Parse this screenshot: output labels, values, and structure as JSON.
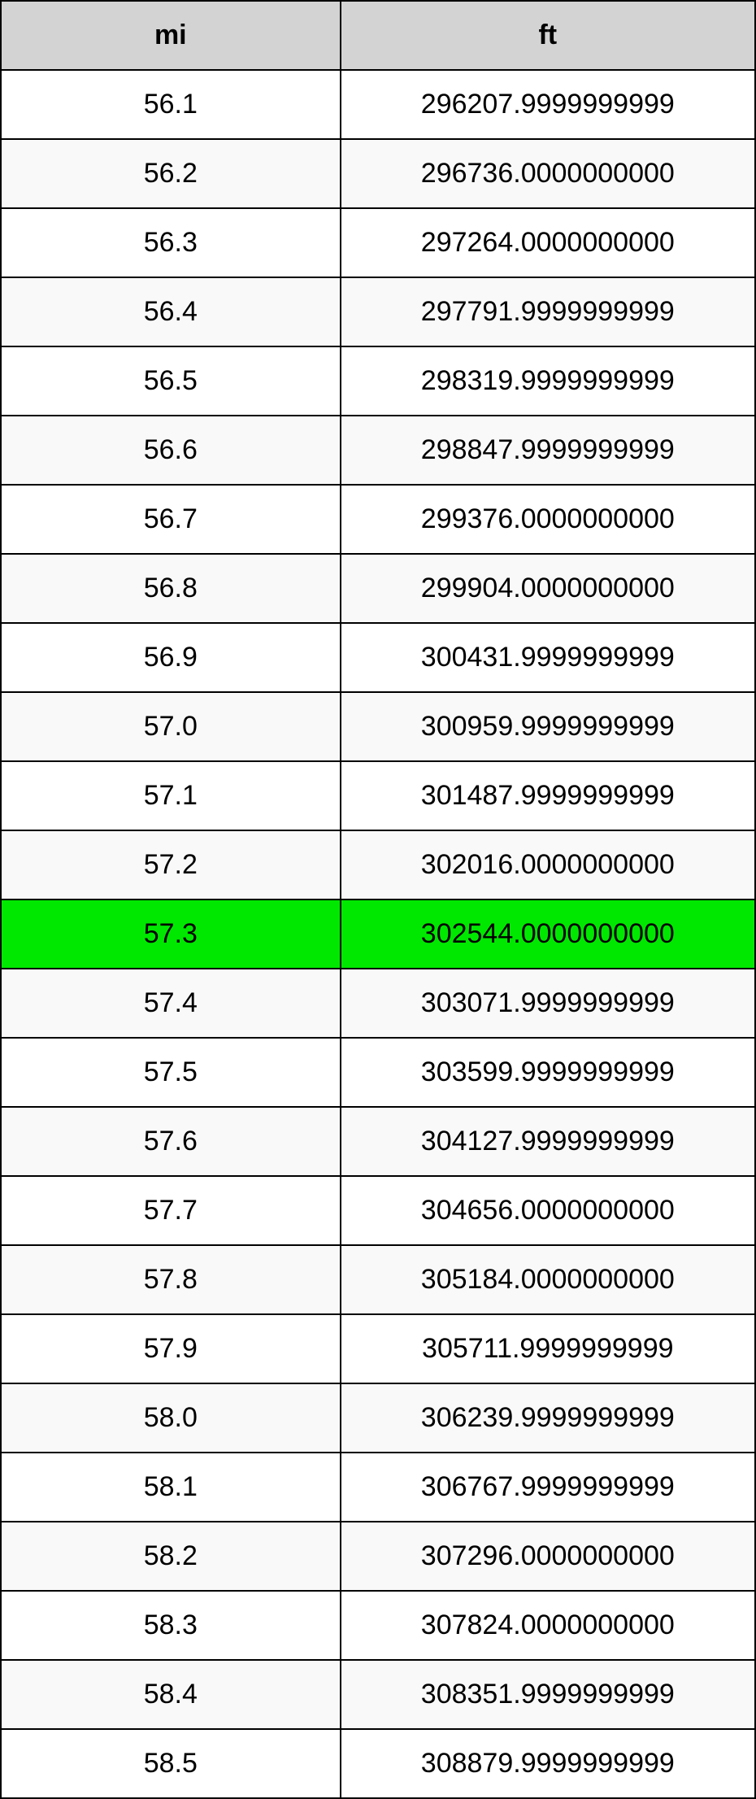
{
  "table": {
    "type": "table",
    "header_bg_color": "#d3d3d3",
    "border_color": "#000000",
    "highlight_color": "#00e800",
    "row_odd_bg": "#ffffff",
    "row_even_bg": "#f9f9f9",
    "font_size": 34,
    "header_font_weight": "bold",
    "text_color": "#000000",
    "columns": [
      {
        "label": "mi",
        "width_pct": 45,
        "align": "center"
      },
      {
        "label": "ft",
        "width_pct": 55,
        "align": "center"
      }
    ],
    "highlighted_row_index": 12,
    "rows": [
      {
        "mi": "56.1",
        "ft": "296207.9999999999"
      },
      {
        "mi": "56.2",
        "ft": "296736.0000000000"
      },
      {
        "mi": "56.3",
        "ft": "297264.0000000000"
      },
      {
        "mi": "56.4",
        "ft": "297791.9999999999"
      },
      {
        "mi": "56.5",
        "ft": "298319.9999999999"
      },
      {
        "mi": "56.6",
        "ft": "298847.9999999999"
      },
      {
        "mi": "56.7",
        "ft": "299376.0000000000"
      },
      {
        "mi": "56.8",
        "ft": "299904.0000000000"
      },
      {
        "mi": "56.9",
        "ft": "300431.9999999999"
      },
      {
        "mi": "57.0",
        "ft": "300959.9999999999"
      },
      {
        "mi": "57.1",
        "ft": "301487.9999999999"
      },
      {
        "mi": "57.2",
        "ft": "302016.0000000000"
      },
      {
        "mi": "57.3",
        "ft": "302544.0000000000"
      },
      {
        "mi": "57.4",
        "ft": "303071.9999999999"
      },
      {
        "mi": "57.5",
        "ft": "303599.9999999999"
      },
      {
        "mi": "57.6",
        "ft": "304127.9999999999"
      },
      {
        "mi": "57.7",
        "ft": "304656.0000000000"
      },
      {
        "mi": "57.8",
        "ft": "305184.0000000000"
      },
      {
        "mi": "57.9",
        "ft": "305711.9999999999"
      },
      {
        "mi": "58.0",
        "ft": "306239.9999999999"
      },
      {
        "mi": "58.1",
        "ft": "306767.9999999999"
      },
      {
        "mi": "58.2",
        "ft": "307296.0000000000"
      },
      {
        "mi": "58.3",
        "ft": "307824.0000000000"
      },
      {
        "mi": "58.4",
        "ft": "308351.9999999999"
      },
      {
        "mi": "58.5",
        "ft": "308879.9999999999"
      }
    ]
  }
}
